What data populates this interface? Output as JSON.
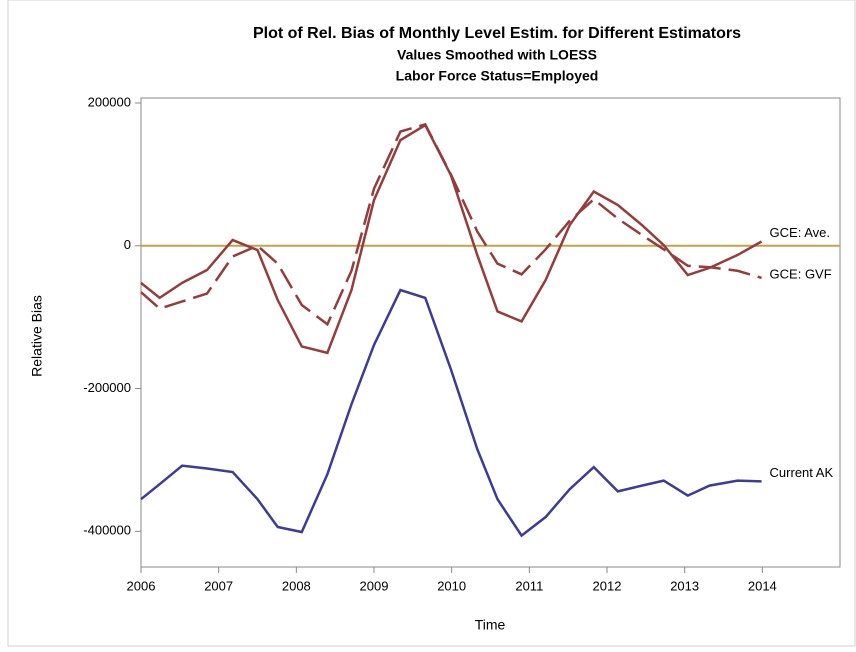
{
  "chart_data": {
    "type": "line",
    "title": "Plot of Rel. Bias of Monthly Level Estim. for Different Estimators",
    "subtitle": "Values Smoothed with LOESS",
    "subtitle2": "Labor Force Status=Employed",
    "xlabel": "Time",
    "ylabel": "Relative Bias",
    "x": [
      2006.0,
      2006.24,
      2006.53,
      2006.85,
      2007.18,
      2007.5,
      2007.76,
      2008.07,
      2008.4,
      2008.71,
      2009.0,
      2009.34,
      2009.66,
      2009.99,
      2010.33,
      2010.59,
      2010.9,
      2011.21,
      2011.52,
      2011.83,
      2012.14,
      2012.45,
      2012.73,
      2013.04,
      2013.32,
      2013.68,
      2013.99
    ],
    "series": [
      {
        "name": "GCE: Ave.",
        "color": "#963c3c",
        "dash": false,
        "values": [
          -52000,
          -73000,
          -52000,
          -34000,
          8000,
          -6000,
          -76000,
          -141000,
          -150000,
          -62000,
          64000,
          148000,
          169000,
          99000,
          -13000,
          -92000,
          -106000,
          -48000,
          29000,
          76000,
          57000,
          29000,
          1000,
          -41000,
          -31000,
          -13000,
          6000
        ]
      },
      {
        "name": "GCE: GVF",
        "color": "#963c3c",
        "dash": true,
        "values": [
          -65000,
          -88000,
          -78000,
          -67000,
          -15000,
          0,
          -25000,
          -83000,
          -110000,
          -35000,
          80000,
          160000,
          170000,
          100000,
          20000,
          -25000,
          -40000,
          -5000,
          35000,
          65000,
          38000,
          15000,
          -5000,
          -28000,
          -30000,
          -35000,
          -45000
        ]
      },
      {
        "name": "Current AK",
        "color": "#3b3b98",
        "dash": false,
        "values": [
          -355000,
          -334000,
          -308000,
          -312000,
          -317000,
          -355000,
          -394000,
          -401000,
          -320000,
          -222000,
          -139000,
          -62000,
          -73000,
          -173000,
          -285000,
          -355000,
          -406000,
          -380000,
          -341000,
          -310000,
          -344000,
          -336000,
          -329000,
          -350000,
          -336000,
          -329000,
          -330000
        ]
      }
    ],
    "refline": 0,
    "refline_color": "#c9a04a",
    "xlim": [
      2006,
      2015
    ],
    "xticks": [
      2006,
      2007,
      2008,
      2009,
      2010,
      2011,
      2012,
      2013,
      2014
    ],
    "ylim": [
      -450000,
      207000
    ],
    "yticks": [
      -400000,
      -200000,
      0,
      200000
    ]
  }
}
